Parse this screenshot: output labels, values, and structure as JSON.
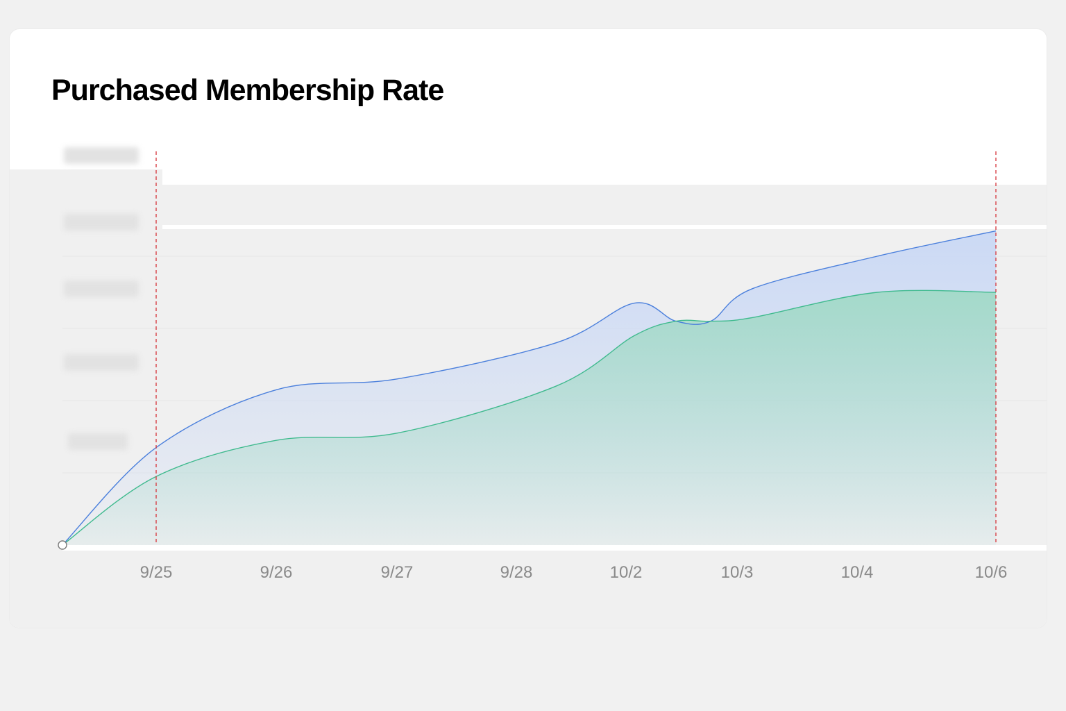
{
  "card": {
    "title": "Purchased Membership Rate"
  },
  "chart_data": {
    "type": "area",
    "title": "Purchased Membership Rate",
    "xlabel": "",
    "ylabel": "",
    "categories": [
      "",
      "9/25",
      "9/26",
      "9/27",
      "9/28",
      "",
      "10/2",
      "",
      "10/3",
      "10/4",
      "10/6"
    ],
    "tick_labels": [
      "9/25",
      "9/26",
      "9/27",
      "9/28",
      "10/2",
      "10/3",
      "10/4",
      "10/6"
    ],
    "series": [
      {
        "values": [
          0,
          27,
          43,
          46,
          56,
          67,
          62,
          62,
          71,
          80,
          87
        ],
        "color": "#4a7fdc",
        "fill": "#c9d8f5"
      },
      {
        "values": [
          0,
          19,
          29,
          31,
          44,
          58,
          62,
          62,
          63,
          70,
          70
        ],
        "color": "#3fba8e",
        "fill": "#9fd9c5"
      }
    ],
    "ylim": [
      0,
      100
    ],
    "y_tick_labels_obscured": true,
    "reference_lines": [
      "9/25",
      "10/6"
    ],
    "reference_line_color": "#d6343a",
    "grid": true
  }
}
